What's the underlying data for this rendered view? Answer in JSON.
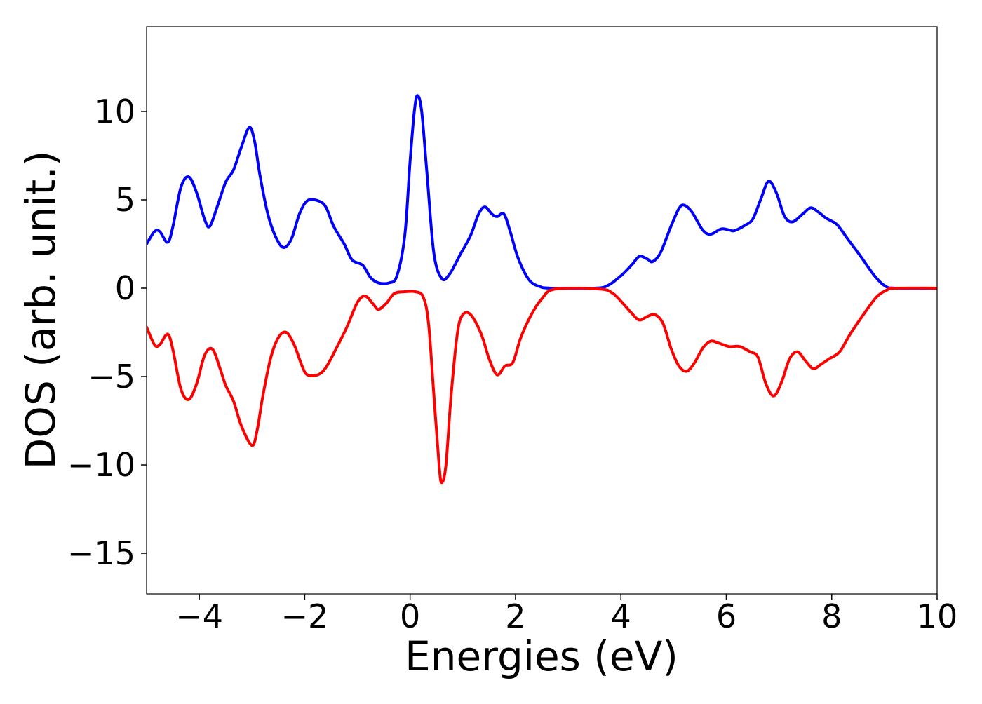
{
  "chart_data": {
    "type": "line",
    "title": "",
    "xlabel": "Energies (eV)",
    "ylabel": "DOS (arb. unit.)",
    "xlim": [
      -5,
      10
    ],
    "ylim": [
      -17.3,
      14.8
    ],
    "grid": false,
    "legend": "none",
    "x_ticks": [
      -4,
      -2,
      0,
      2,
      4,
      6,
      8,
      10
    ],
    "x_tick_labels": [
      "−4",
      "−2",
      "0",
      "2",
      "4",
      "6",
      "8",
      "10"
    ],
    "y_ticks": [
      10,
      5,
      0,
      -5,
      -10,
      -15
    ],
    "y_tick_labels": [
      "10",
      "5",
      "0",
      "−5",
      "−10",
      "−15"
    ],
    "series": [
      {
        "color": "#0000ff",
        "points": [
          [
            -5.0,
            2.5
          ],
          [
            -4.85,
            3.2
          ],
          [
            -4.75,
            3.2
          ],
          [
            -4.6,
            2.6
          ],
          [
            -4.5,
            3.5
          ],
          [
            -4.35,
            5.7
          ],
          [
            -4.2,
            6.3
          ],
          [
            -4.05,
            5.4
          ],
          [
            -3.9,
            3.9
          ],
          [
            -3.8,
            3.5
          ],
          [
            -3.65,
            4.7
          ],
          [
            -3.5,
            6.0
          ],
          [
            -3.35,
            6.7
          ],
          [
            -3.2,
            8.0
          ],
          [
            -3.05,
            9.1
          ],
          [
            -2.95,
            8.3
          ],
          [
            -2.85,
            6.4
          ],
          [
            -2.7,
            4.2
          ],
          [
            -2.55,
            2.9
          ],
          [
            -2.4,
            2.3
          ],
          [
            -2.25,
            2.8
          ],
          [
            -2.1,
            4.2
          ],
          [
            -1.95,
            4.95
          ],
          [
            -1.75,
            4.95
          ],
          [
            -1.6,
            4.6
          ],
          [
            -1.45,
            3.5
          ],
          [
            -1.25,
            2.5
          ],
          [
            -1.1,
            1.6
          ],
          [
            -0.9,
            1.3
          ],
          [
            -0.75,
            0.6
          ],
          [
            -0.6,
            0.3
          ],
          [
            -0.4,
            0.3
          ],
          [
            -0.25,
            0.7
          ],
          [
            -0.1,
            3.0
          ],
          [
            0.0,
            7.2
          ],
          [
            0.08,
            10.0
          ],
          [
            0.14,
            10.9
          ],
          [
            0.22,
            10.0
          ],
          [
            0.32,
            6.5
          ],
          [
            0.45,
            2.0
          ],
          [
            0.6,
            0.55
          ],
          [
            0.75,
            0.8
          ],
          [
            0.95,
            1.9
          ],
          [
            1.15,
            3.0
          ],
          [
            1.3,
            4.2
          ],
          [
            1.42,
            4.6
          ],
          [
            1.55,
            4.2
          ],
          [
            1.65,
            4.05
          ],
          [
            1.78,
            4.2
          ],
          [
            1.9,
            3.2
          ],
          [
            2.05,
            1.7
          ],
          [
            2.25,
            0.5
          ],
          [
            2.45,
            0.1
          ],
          [
            2.7,
            0.0
          ],
          [
            3.5,
            0.0
          ],
          [
            3.75,
            0.15
          ],
          [
            4.0,
            0.7
          ],
          [
            4.2,
            1.3
          ],
          [
            4.35,
            1.8
          ],
          [
            4.5,
            1.65
          ],
          [
            4.6,
            1.5
          ],
          [
            4.75,
            2.0
          ],
          [
            4.95,
            3.5
          ],
          [
            5.1,
            4.5
          ],
          [
            5.2,
            4.7
          ],
          [
            5.35,
            4.3
          ],
          [
            5.55,
            3.3
          ],
          [
            5.7,
            3.05
          ],
          [
            5.9,
            3.35
          ],
          [
            6.05,
            3.3
          ],
          [
            6.15,
            3.25
          ],
          [
            6.35,
            3.55
          ],
          [
            6.5,
            3.9
          ],
          [
            6.65,
            5.0
          ],
          [
            6.8,
            6.05
          ],
          [
            6.95,
            5.4
          ],
          [
            7.1,
            4.1
          ],
          [
            7.25,
            3.75
          ],
          [
            7.45,
            4.2
          ],
          [
            7.6,
            4.55
          ],
          [
            7.75,
            4.3
          ],
          [
            7.9,
            3.95
          ],
          [
            8.1,
            3.6
          ],
          [
            8.3,
            2.8
          ],
          [
            8.55,
            1.8
          ],
          [
            8.8,
            0.75
          ],
          [
            9.0,
            0.15
          ],
          [
            9.2,
            0.0
          ],
          [
            10.0,
            0.0
          ]
        ]
      },
      {
        "color": "#ff0000",
        "points": [
          [
            -5.0,
            -2.2
          ],
          [
            -4.85,
            -3.2
          ],
          [
            -4.75,
            -3.2
          ],
          [
            -4.6,
            -2.6
          ],
          [
            -4.5,
            -3.5
          ],
          [
            -4.35,
            -5.7
          ],
          [
            -4.2,
            -6.3
          ],
          [
            -4.05,
            -5.4
          ],
          [
            -3.9,
            -3.8
          ],
          [
            -3.75,
            -3.45
          ],
          [
            -3.6,
            -4.6
          ],
          [
            -3.5,
            -5.5
          ],
          [
            -3.35,
            -6.4
          ],
          [
            -3.2,
            -7.8
          ],
          [
            -3.0,
            -8.9
          ],
          [
            -2.9,
            -8.0
          ],
          [
            -2.8,
            -6.2
          ],
          [
            -2.65,
            -4.0
          ],
          [
            -2.5,
            -2.8
          ],
          [
            -2.35,
            -2.5
          ],
          [
            -2.2,
            -3.2
          ],
          [
            -2.05,
            -4.4
          ],
          [
            -1.95,
            -4.9
          ],
          [
            -1.75,
            -4.9
          ],
          [
            -1.6,
            -4.5
          ],
          [
            -1.4,
            -3.4
          ],
          [
            -1.2,
            -2.2
          ],
          [
            -1.0,
            -0.8
          ],
          [
            -0.85,
            -0.45
          ],
          [
            -0.7,
            -0.9
          ],
          [
            -0.6,
            -1.2
          ],
          [
            -0.45,
            -0.85
          ],
          [
            -0.3,
            -0.3
          ],
          [
            -0.1,
            -0.2
          ],
          [
            0.1,
            -0.2
          ],
          [
            0.25,
            -0.5
          ],
          [
            0.35,
            -2.0
          ],
          [
            0.45,
            -6.0
          ],
          [
            0.55,
            -10.0
          ],
          [
            0.6,
            -11.0
          ],
          [
            0.68,
            -10.0
          ],
          [
            0.78,
            -6.0
          ],
          [
            0.9,
            -2.5
          ],
          [
            1.0,
            -1.5
          ],
          [
            1.15,
            -1.5
          ],
          [
            1.35,
            -2.6
          ],
          [
            1.5,
            -4.0
          ],
          [
            1.65,
            -4.9
          ],
          [
            1.8,
            -4.4
          ],
          [
            1.95,
            -4.2
          ],
          [
            2.1,
            -2.8
          ],
          [
            2.3,
            -1.5
          ],
          [
            2.5,
            -0.6
          ],
          [
            2.75,
            -0.05
          ],
          [
            3.6,
            -0.05
          ],
          [
            3.85,
            -0.3
          ],
          [
            4.05,
            -0.9
          ],
          [
            4.2,
            -1.4
          ],
          [
            4.35,
            -1.8
          ],
          [
            4.5,
            -1.6
          ],
          [
            4.65,
            -1.5
          ],
          [
            4.8,
            -2.0
          ],
          [
            4.95,
            -3.4
          ],
          [
            5.1,
            -4.4
          ],
          [
            5.25,
            -4.7
          ],
          [
            5.4,
            -4.2
          ],
          [
            5.55,
            -3.4
          ],
          [
            5.7,
            -3.0
          ],
          [
            5.85,
            -3.1
          ],
          [
            6.05,
            -3.3
          ],
          [
            6.25,
            -3.3
          ],
          [
            6.45,
            -3.6
          ],
          [
            6.6,
            -3.9
          ],
          [
            6.75,
            -5.4
          ],
          [
            6.9,
            -6.1
          ],
          [
            7.05,
            -5.3
          ],
          [
            7.2,
            -4.0
          ],
          [
            7.35,
            -3.6
          ],
          [
            7.5,
            -4.1
          ],
          [
            7.65,
            -4.55
          ],
          [
            7.8,
            -4.3
          ],
          [
            7.95,
            -4.0
          ],
          [
            8.15,
            -3.6
          ],
          [
            8.35,
            -2.6
          ],
          [
            8.6,
            -1.5
          ],
          [
            8.85,
            -0.5
          ],
          [
            9.05,
            -0.1
          ],
          [
            9.2,
            0.0
          ],
          [
            10.0,
            0.0
          ]
        ]
      }
    ]
  }
}
